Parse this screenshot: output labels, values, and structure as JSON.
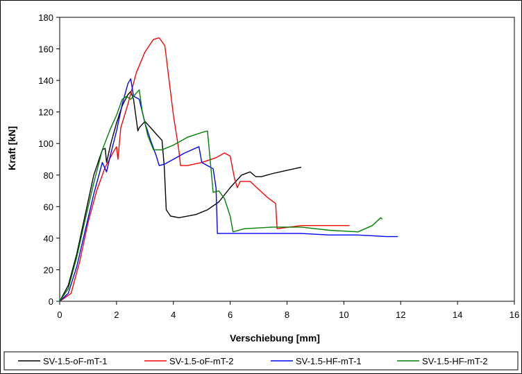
{
  "chart_data": {
    "type": "line",
    "title": "",
    "xlabel": "Verschiebung [mm]",
    "ylabel": "Kraft [kN]",
    "xlim": [
      0,
      16
    ],
    "ylim": [
      0,
      180
    ],
    "xticks": [
      0,
      2,
      4,
      6,
      8,
      10,
      12,
      14,
      16
    ],
    "yticks": [
      0,
      20,
      40,
      60,
      80,
      100,
      120,
      140,
      160,
      180
    ],
    "grid": false,
    "legend_position": "bottom",
    "series": [
      {
        "name": "SV-1.5-oF-mT-1",
        "color": "#000000",
        "x": [
          0,
          0.3,
          0.6,
          0.9,
          1.2,
          1.5,
          1.6,
          1.65,
          1.8,
          2.0,
          2.2,
          2.4,
          2.5,
          2.6,
          2.75,
          2.8,
          3.0,
          3.2,
          3.4,
          3.6,
          3.68,
          3.75,
          3.9,
          4.2,
          4.8,
          5.2,
          5.6,
          6.0,
          6.4,
          6.7,
          6.9,
          7.1,
          7.5,
          8.0,
          8.5
        ],
        "y": [
          0,
          10,
          30,
          55,
          80,
          96,
          97,
          88,
          100,
          113,
          124,
          131,
          133,
          128,
          108,
          110,
          114,
          110,
          106,
          102,
          85,
          58,
          54,
          53,
          55,
          58,
          63,
          72,
          80,
          82,
          79,
          79,
          81,
          83,
          85
        ]
      },
      {
        "name": "SV-1.5-oF-mT-2",
        "color": "#ff0000",
        "x": [
          0,
          0.4,
          0.7,
          1.0,
          1.3,
          1.6,
          1.9,
          2.0,
          2.05,
          2.15,
          2.4,
          2.7,
          3.0,
          3.3,
          3.5,
          3.7,
          3.85,
          4.0,
          4.2,
          4.25,
          4.5,
          5.0,
          5.5,
          5.8,
          6.0,
          6.15,
          6.25,
          6.35,
          6.7,
          7.3,
          7.6,
          7.65,
          8.5,
          9.5,
          10.2
        ],
        "y": [
          0,
          5,
          25,
          50,
          70,
          85,
          95,
          98,
          90,
          110,
          125,
          145,
          158,
          166,
          167,
          162,
          140,
          118,
          95,
          86,
          86,
          88,
          91,
          94,
          92,
          78,
          72,
          76,
          76,
          66,
          62,
          46,
          48,
          48,
          48
        ]
      },
      {
        "name": "SV-1.5-HF-mT-1",
        "color": "#0000ff",
        "x": [
          0,
          0.3,
          0.6,
          0.9,
          1.2,
          1.5,
          1.65,
          1.75,
          2.0,
          2.2,
          2.4,
          2.5,
          2.6,
          2.8,
          3.0,
          3.2,
          3.4,
          3.5,
          3.7,
          4.0,
          4.4,
          4.9,
          5.0,
          5.4,
          5.5,
          5.55,
          5.7,
          6.5,
          7.5,
          8.5,
          9.5,
          10.5,
          11.5,
          11.9
        ],
        "y": [
          0,
          5,
          22,
          45,
          68,
          88,
          82,
          90,
          108,
          125,
          138,
          141,
          130,
          128,
          113,
          102,
          92,
          86,
          87,
          90,
          94,
          98,
          88,
          84,
          72,
          43,
          43,
          43,
          43,
          43,
          42,
          42,
          41,
          41
        ]
      },
      {
        "name": "SV-1.5-HF-mT-2",
        "color": "#008000",
        "x": [
          0,
          0.3,
          0.6,
          0.9,
          1.2,
          1.5,
          1.8,
          2.0,
          2.2,
          2.35,
          2.5,
          2.65,
          2.8,
          2.9,
          3.1,
          3.3,
          3.6,
          4.0,
          4.5,
          5.0,
          5.2,
          5.4,
          5.6,
          5.8,
          6.0,
          6.1,
          6.5,
          7.5,
          8.5,
          9.5,
          10.5,
          11.0,
          11.3,
          11.35
        ],
        "y": [
          0,
          8,
          28,
          52,
          75,
          96,
          110,
          118,
          128,
          130,
          128,
          131,
          134,
          121,
          105,
          96,
          96,
          99,
          104,
          107,
          108,
          69,
          70,
          65,
          54,
          44,
          46,
          47,
          47,
          45,
          44,
          48,
          53,
          52
        ]
      }
    ]
  }
}
